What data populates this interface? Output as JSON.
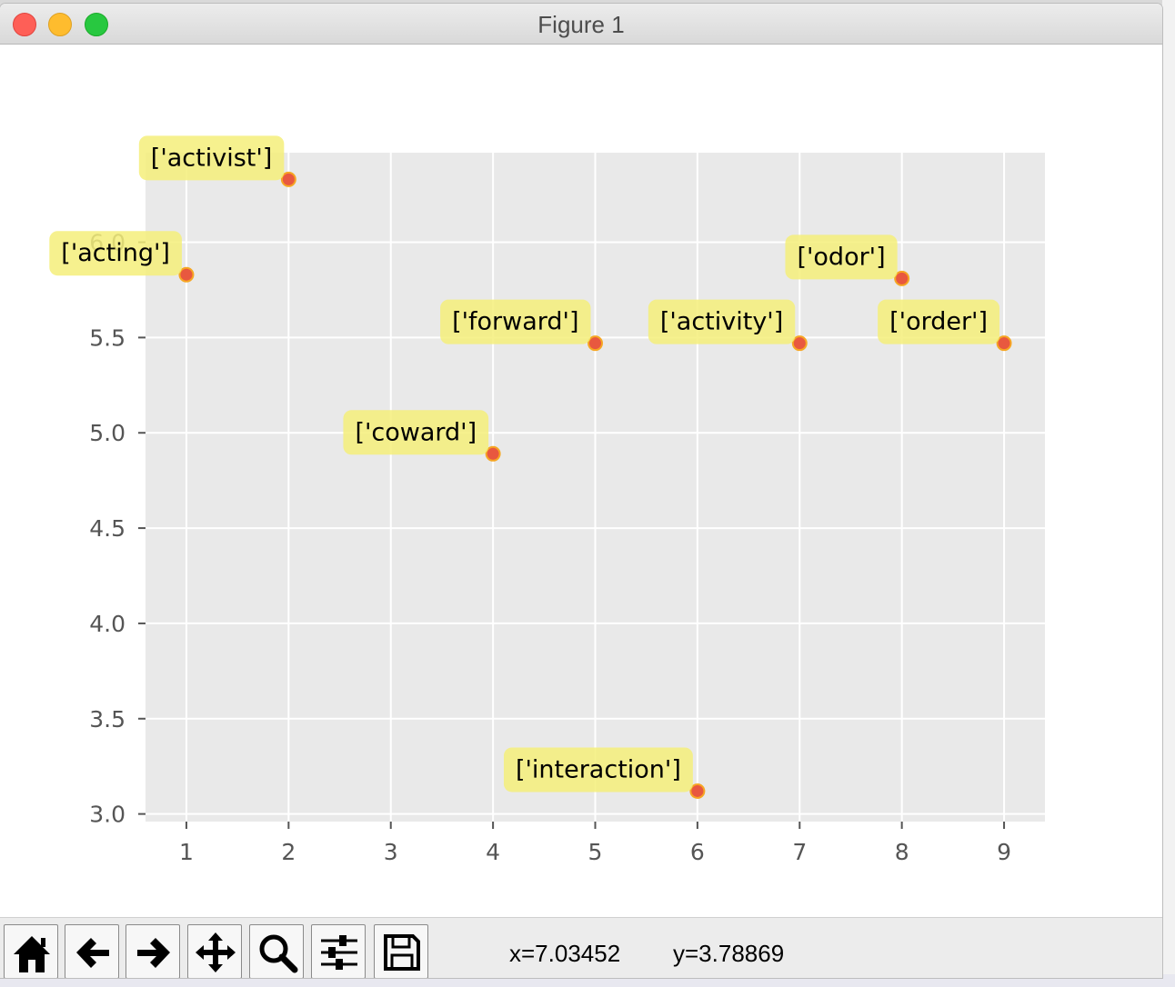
{
  "window": {
    "title": "Figure 1"
  },
  "toolbar": {
    "buttons": [
      {
        "icon": "home-icon",
        "label": "Home"
      },
      {
        "icon": "back-arrow-icon",
        "label": "Back"
      },
      {
        "icon": "forward-arrow-icon",
        "label": "Forward"
      },
      {
        "icon": "pan-icon",
        "label": "Pan"
      },
      {
        "icon": "zoom-icon",
        "label": "Zoom"
      },
      {
        "icon": "subplots-icon",
        "label": "Configure subplots"
      },
      {
        "icon": "save-icon",
        "label": "Save"
      }
    ],
    "x_readout": "x=7.03452",
    "y_readout": "y=3.78869"
  },
  "chart_data": {
    "type": "scatter",
    "xlim": [
      0.6,
      9.4
    ],
    "ylim": [
      2.96,
      6.47
    ],
    "xticks": [
      1,
      2,
      3,
      4,
      5,
      6,
      7,
      8,
      9
    ],
    "yticks": [
      3.0,
      3.5,
      4.0,
      4.5,
      5.0,
      5.5,
      6.0
    ],
    "ytick_labels": [
      "3.0",
      "3.5",
      "4.0",
      "4.5",
      "5.0",
      "5.5",
      "6.0"
    ],
    "grid": true,
    "style": "ggplot",
    "colors": {
      "background": "#e9e9e9",
      "grid": "#ffffff",
      "point": "#e8583f",
      "point_edge": "#f6a623",
      "label_box": "#f5ee7a"
    },
    "points": [
      {
        "x": 1,
        "y": 5.83,
        "label": "['acting']"
      },
      {
        "x": 2,
        "y": 6.33,
        "label": "['activist']"
      },
      {
        "x": 4,
        "y": 4.89,
        "label": "['coward']"
      },
      {
        "x": 5,
        "y": 5.47,
        "label": "['forward']"
      },
      {
        "x": 6,
        "y": 3.12,
        "label": "['interaction']"
      },
      {
        "x": 7,
        "y": 5.47,
        "label": "['activity']"
      },
      {
        "x": 8,
        "y": 5.81,
        "label": "['odor']"
      },
      {
        "x": 9,
        "y": 5.47,
        "label": "['order']"
      }
    ]
  }
}
